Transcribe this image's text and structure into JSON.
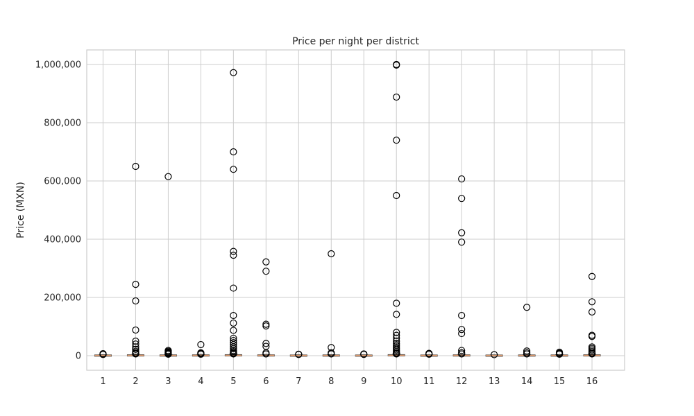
{
  "chart_data": {
    "type": "box",
    "title": "Price per night per district",
    "xlabel": "",
    "ylabel": "Price (MXN)",
    "ylim": [
      -50000,
      1050000
    ],
    "grid": true,
    "y_ticks": [
      0,
      200000,
      400000,
      600000,
      800000,
      1000000
    ],
    "y_tick_labels": [
      "0",
      "200,000",
      "400,000",
      "600,000",
      "800,000",
      "1,000,000"
    ],
    "categories": [
      "1",
      "2",
      "3",
      "4",
      "5",
      "6",
      "7",
      "8",
      "9",
      "10",
      "11",
      "12",
      "13",
      "14",
      "15",
      "16"
    ],
    "boxes": [
      {
        "category": "1",
        "q1": 500,
        "median": 900,
        "q3": 1600,
        "whisker_low": 100,
        "whisker_high": 3500,
        "outliers": [
          4000,
          5000,
          6000,
          7000
        ]
      },
      {
        "category": "2",
        "q1": 600,
        "median": 1100,
        "q3": 2200,
        "whisker_low": 100,
        "whisker_high": 5000,
        "outliers": [
          650000,
          245000,
          188000,
          88000,
          50000,
          40000,
          30000,
          22000,
          15000,
          10000,
          8000,
          6000
        ]
      },
      {
        "category": "3",
        "q1": 500,
        "median": 900,
        "q3": 1800,
        "whisker_low": 100,
        "whisker_high": 4000,
        "outliers": [
          615000,
          18000,
          15000,
          12000,
          10000,
          8000,
          6000,
          5000
        ]
      },
      {
        "category": "4",
        "q1": 600,
        "median": 1000,
        "q3": 2000,
        "whisker_low": 100,
        "whisker_high": 4500,
        "outliers": [
          38000,
          10000,
          8000,
          6000,
          5000
        ]
      },
      {
        "category": "5",
        "q1": 700,
        "median": 1200,
        "q3": 2500,
        "whisker_low": 100,
        "whisker_high": 5500,
        "outliers": [
          972000,
          700000,
          640000,
          358000,
          345000,
          232000,
          138000,
          112000,
          87000,
          60000,
          52000,
          45000,
          38000,
          30000,
          24000,
          18000,
          14000,
          10000,
          8000,
          6000
        ]
      },
      {
        "category": "6",
        "q1": 600,
        "median": 1000,
        "q3": 2000,
        "whisker_low": 100,
        "whisker_high": 4500,
        "outliers": [
          322000,
          290000,
          108000,
          102000,
          42000,
          32000,
          10000,
          6000
        ]
      },
      {
        "category": "7",
        "q1": 500,
        "median": 850,
        "q3": 1500,
        "whisker_low": 100,
        "whisker_high": 3200,
        "outliers": [
          5000,
          4000
        ]
      },
      {
        "category": "8",
        "q1": 500,
        "median": 900,
        "q3": 1700,
        "whisker_low": 100,
        "whisker_high": 3800,
        "outliers": [
          350000,
          28000,
          10000,
          6000
        ]
      },
      {
        "category": "9",
        "q1": 500,
        "median": 850,
        "q3": 1500,
        "whisker_low": 100,
        "whisker_high": 3200,
        "outliers": [
          6000,
          4500
        ]
      },
      {
        "category": "10",
        "q1": 700,
        "median": 1200,
        "q3": 2600,
        "whisker_low": 100,
        "whisker_high": 5800,
        "outliers": [
          1000000,
          998000,
          888000,
          740000,
          550000,
          180000,
          142000,
          80000,
          70000,
          60000,
          50000,
          42000,
          36000,
          30000,
          25000,
          20000,
          15000,
          10000,
          8000,
          6000
        ]
      },
      {
        "category": "11",
        "q1": 500,
        "median": 850,
        "q3": 1500,
        "whisker_low": 100,
        "whisker_high": 3200,
        "outliers": [
          8000,
          6000,
          5000
        ]
      },
      {
        "category": "12",
        "q1": 600,
        "median": 1000,
        "q3": 2000,
        "whisker_low": 100,
        "whisker_high": 4500,
        "outliers": [
          607000,
          540000,
          422000,
          390000,
          138000,
          90000,
          76000,
          18000,
          10000,
          6000
        ]
      },
      {
        "category": "13",
        "q1": 450,
        "median": 800,
        "q3": 1400,
        "whisker_low": 100,
        "whisker_high": 3000,
        "outliers": [
          3500
        ]
      },
      {
        "category": "14",
        "q1": 500,
        "median": 900,
        "q3": 1700,
        "whisker_low": 100,
        "whisker_high": 3800,
        "outliers": [
          166000,
          16000,
          10000,
          6000
        ]
      },
      {
        "category": "15",
        "q1": 500,
        "median": 900,
        "q3": 1700,
        "whisker_low": 100,
        "whisker_high": 3800,
        "outliers": [
          12000,
          9000,
          7000,
          5000
        ]
      },
      {
        "category": "16",
        "q1": 600,
        "median": 1100,
        "q3": 2200,
        "whisker_low": 100,
        "whisker_high": 5000,
        "outliers": [
          272000,
          185000,
          150000,
          70000,
          66000,
          30000,
          25000,
          20000,
          15000,
          10000,
          8000,
          6000
        ]
      }
    ]
  }
}
